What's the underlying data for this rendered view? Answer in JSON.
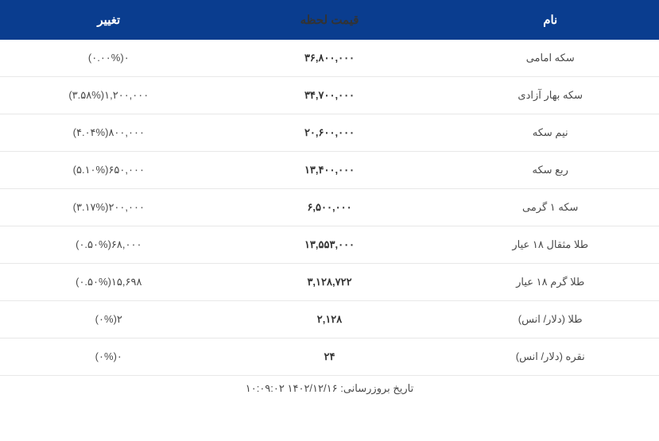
{
  "type": "table",
  "columns": {
    "name": "نام",
    "price": "قیمت لحظه",
    "change": "تغییر"
  },
  "rows": [
    {
      "name": "سکه امامی",
      "price": "۳۶,۸۰۰,۰۰۰",
      "change": "۰(۰.۰۰%)"
    },
    {
      "name": "سکه بهار آزادی",
      "price": "۳۴,۷۰۰,۰۰۰",
      "change": "۱,۲۰۰,۰۰۰(۳.۵۸%)"
    },
    {
      "name": "نیم سکه",
      "price": "۲۰,۶۰۰,۰۰۰",
      "change": "۸۰۰,۰۰۰(۴.۰۴%)"
    },
    {
      "name": "ربع سکه",
      "price": "۱۳,۴۰۰,۰۰۰",
      "change": "۶۵۰,۰۰۰(۵.۱۰%)"
    },
    {
      "name": "سکه ۱ گرمی",
      "price": "۶,۵۰۰,۰۰۰",
      "change": "۲۰۰,۰۰۰(۳.۱۷%)"
    },
    {
      "name": "طلا مثقال ۱۸ عیار",
      "price": "۱۳,۵۵۳,۰۰۰",
      "change": "۶۸,۰۰۰(۰.۵۰%)"
    },
    {
      "name": "طلا گرم ۱۸ عیار",
      "price": "۳,۱۲۸,۷۲۲",
      "change": "۱۵,۶۹۸(۰.۵۰%)"
    },
    {
      "name": "طلا (دلار/ انس)",
      "price": "۲,۱۲۸",
      "change": "۲(۰%)"
    },
    {
      "name": "نقره (دلار/ انس)",
      "price": "۲۴",
      "change": "۰(۰%)"
    }
  ],
  "footer": {
    "label": "تاریخ بروزرسانی:",
    "date": "۱۴۰۲/۱۲/۱۶",
    "time": "۱۰:۰۹:۰۲"
  },
  "colors": {
    "header_bg": "#0a3d8f",
    "header_text": "#ffffff",
    "row_border": "#e8e8e8",
    "text": "#4a4a4a",
    "price_text": "#333333"
  },
  "fonts": {
    "header_size": 15,
    "cell_size": 13,
    "footer_size": 13
  }
}
